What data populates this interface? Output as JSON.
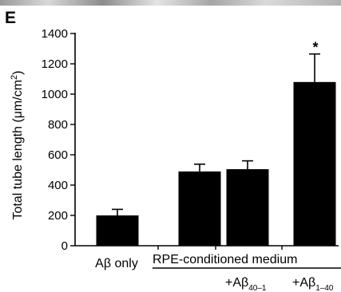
{
  "panel_label": "E",
  "chart_data": {
    "type": "bar",
    "ylabel_text": "Total tube length (μm/cm",
    "ylabel_sup": "2",
    "ylabel_close": ")",
    "ylim": [
      0,
      1400
    ],
    "yticks": [
      0,
      200,
      400,
      600,
      800,
      1000,
      1200,
      1400
    ],
    "values": [
      200,
      490,
      505,
      1080
    ],
    "errors": [
      40,
      48,
      55,
      185
    ],
    "significance": [
      "",
      "",
      "",
      "*"
    ],
    "bar_color": "#000000",
    "categories": [
      {
        "prefix": "",
        "beta": "",
        "sub": "",
        "text": "Aβ only"
      },
      {
        "prefix": "",
        "beta": "",
        "sub": "",
        "text": ""
      },
      {
        "prefix": "+A",
        "beta": "β",
        "sub": "40–1",
        "text": ""
      },
      {
        "prefix": "+A",
        "beta": "β",
        "sub": "1–40",
        "text": ""
      }
    ],
    "group_label": "RPE-conditioned medium"
  }
}
